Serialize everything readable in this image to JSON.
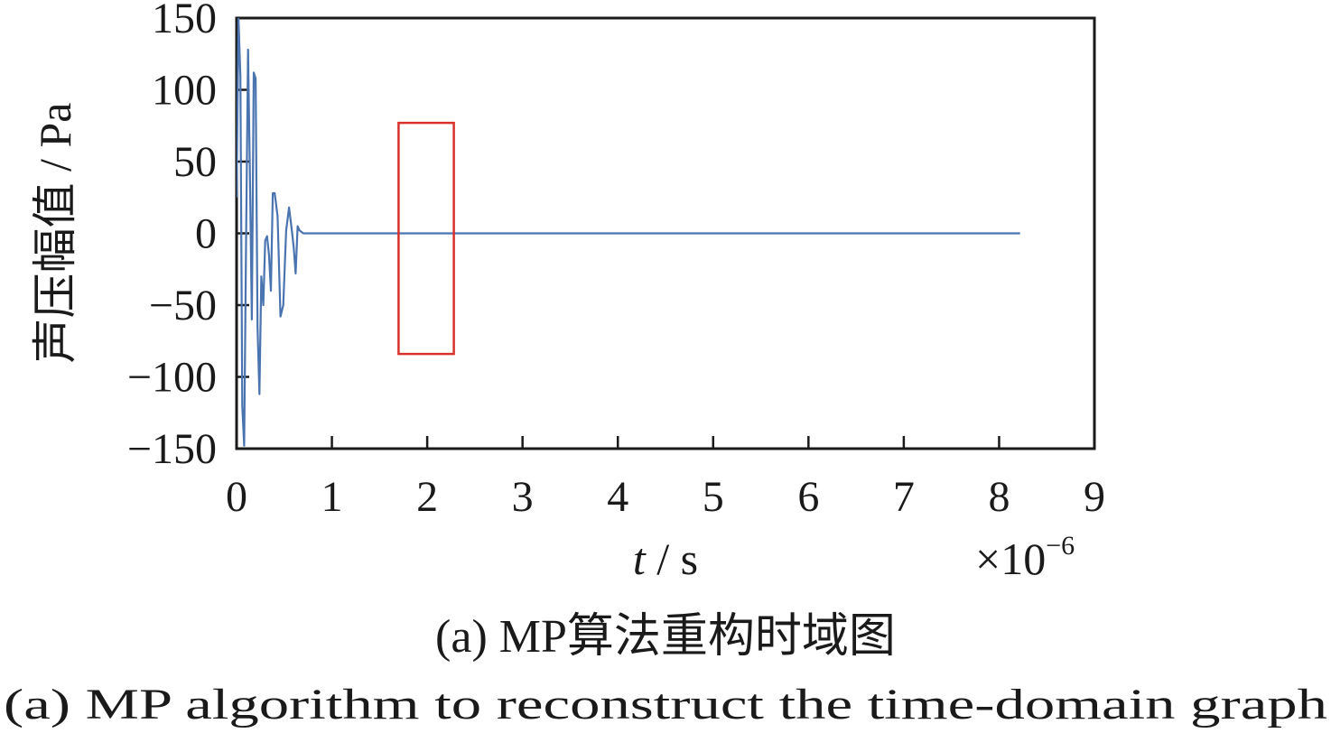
{
  "chart_data": {
    "type": "line",
    "ylabel": "声压幅值 / Pa",
    "xlabel_var": "t",
    "xlabel_unit": " / s",
    "x_multiplier": "×10",
    "x_multiplier_exp": "−6",
    "xlim": [
      0,
      9
    ],
    "ylim": [
      -150,
      150
    ],
    "xticks": [
      0,
      1,
      2,
      3,
      4,
      5,
      6,
      7,
      8,
      9
    ],
    "xtick_labels": [
      "0",
      "1",
      "2",
      "3",
      "4",
      "5",
      "6",
      "7",
      "8",
      "9"
    ],
    "yticks": [
      150,
      100,
      50,
      0,
      -50,
      -100,
      -150
    ],
    "ytick_labels": [
      "150",
      "100",
      "50",
      "0",
      "−50",
      "−100",
      "−150"
    ],
    "grid": false,
    "line_color": "#4a74b0",
    "highlight_color": "#d9312b",
    "highlight_box": {
      "x": [
        1.7,
        2.28
      ],
      "y": [
        -84,
        77
      ]
    },
    "series": [
      {
        "x": [
          0,
          0.02,
          0.04,
          0.06,
          0.08,
          0.1,
          0.12,
          0.14,
          0.16,
          0.18,
          0.2,
          0.22,
          0.24,
          0.26,
          0.28,
          0.3,
          0.32,
          0.34,
          0.36,
          0.38,
          0.4,
          0.43,
          0.46,
          0.49,
          0.52,
          0.55,
          0.58,
          0.6,
          0.62,
          0.64,
          0.66,
          0.7,
          0.73,
          0.76,
          0.79,
          0.8,
          0.83,
          0.86,
          0.9,
          0.94,
          0.97,
          1.0,
          1.03,
          1.06,
          1.09,
          1.12,
          1.15,
          1.18,
          1.22,
          1.3,
          1.5,
          1.7,
          1.74,
          1.77,
          1.8,
          1.84,
          1.88,
          1.92,
          1.96,
          2.0,
          2.04,
          2.08,
          2.11,
          2.14,
          2.17,
          2.2,
          2.24,
          2.28,
          2.32,
          2.36,
          2.4,
          2.45,
          2.5,
          2.55,
          2.6,
          2.63,
          2.66,
          2.69,
          2.72,
          2.75,
          2.78,
          2.81,
          2.84,
          2.88,
          2.95,
          3.2,
          3.5,
          3.7,
          3.73,
          3.76,
          3.79,
          3.82,
          3.85,
          3.88,
          3.91,
          3.94,
          3.97,
          4.0,
          4.03,
          4.06,
          4.09,
          4.12,
          4.15,
          4.2,
          4.25,
          4.3,
          4.35,
          4.4,
          4.45,
          4.6,
          5.0,
          6.0,
          7.0,
          8.0,
          8.22
        ],
        "y": [
          25,
          150,
          110,
          -120,
          -148,
          0,
          128,
          40,
          -60,
          112,
          108,
          -65,
          -112,
          -30,
          -50,
          -5,
          -2,
          -15,
          -40,
          28,
          28,
          12,
          -58,
          -50,
          2,
          18,
          2,
          -10,
          -28,
          5,
          2,
          0,
          0,
          0,
          0,
          0,
          0,
          0,
          0,
          0,
          0,
          0,
          0,
          0,
          0,
          0,
          0,
          0,
          0,
          0,
          0,
          0,
          0,
          0,
          0,
          0,
          0,
          0,
          0,
          0,
          0,
          0,
          0,
          0,
          0,
          0,
          0,
          0,
          0,
          0,
          0,
          0,
          0,
          0,
          0,
          0,
          0,
          0,
          0,
          0,
          0,
          0,
          0,
          0,
          0,
          0,
          0,
          0,
          0,
          0,
          0,
          0,
          0,
          0,
          0,
          0,
          0,
          0,
          0,
          0,
          0,
          0,
          0,
          0,
          0,
          0,
          0,
          0,
          0,
          0,
          0,
          0,
          0,
          0,
          0
        ]
      }
    ]
  },
  "caption": {
    "zh_prefix": "(a)  MP",
    "zh_text": "算法重构时域图",
    "en_text": "(a)  MP algorithm to reconstruct the time-domain graph"
  }
}
